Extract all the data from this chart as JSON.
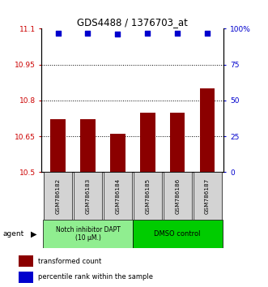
{
  "title": "GDS4488 / 1376703_at",
  "categories": [
    "GSM786182",
    "GSM786183",
    "GSM786184",
    "GSM786185",
    "GSM786186",
    "GSM786187"
  ],
  "bar_values": [
    10.72,
    10.72,
    10.66,
    10.75,
    10.75,
    10.85
  ],
  "bar_color": "#8B0000",
  "dot_values": [
    97,
    97,
    96,
    97,
    97,
    97
  ],
  "dot_color": "#0000CD",
  "ylim_left": [
    10.5,
    11.1
  ],
  "ylim_right": [
    0,
    100
  ],
  "yticks_left": [
    10.5,
    10.65,
    10.8,
    10.95,
    11.1
  ],
  "yticks_right": [
    0,
    25,
    50,
    75,
    100
  ],
  "grid_lines": [
    10.65,
    10.8,
    10.95
  ],
  "group1_label": "Notch inhibitor DAPT\n(10 μM.)",
  "group2_label": "DMSO control",
  "group1_color": "#90EE90",
  "group2_color": "#00CC00",
  "group1_indices": [
    0,
    1,
    2
  ],
  "group2_indices": [
    3,
    4,
    5
  ],
  "agent_label": "agent",
  "legend_bar_label": "transformed count",
  "legend_dot_label": "percentile rank within the sample",
  "ylabel_left_color": "#CC0000",
  "ylabel_right_color": "#0000CD",
  "bar_bottom": 10.5
}
